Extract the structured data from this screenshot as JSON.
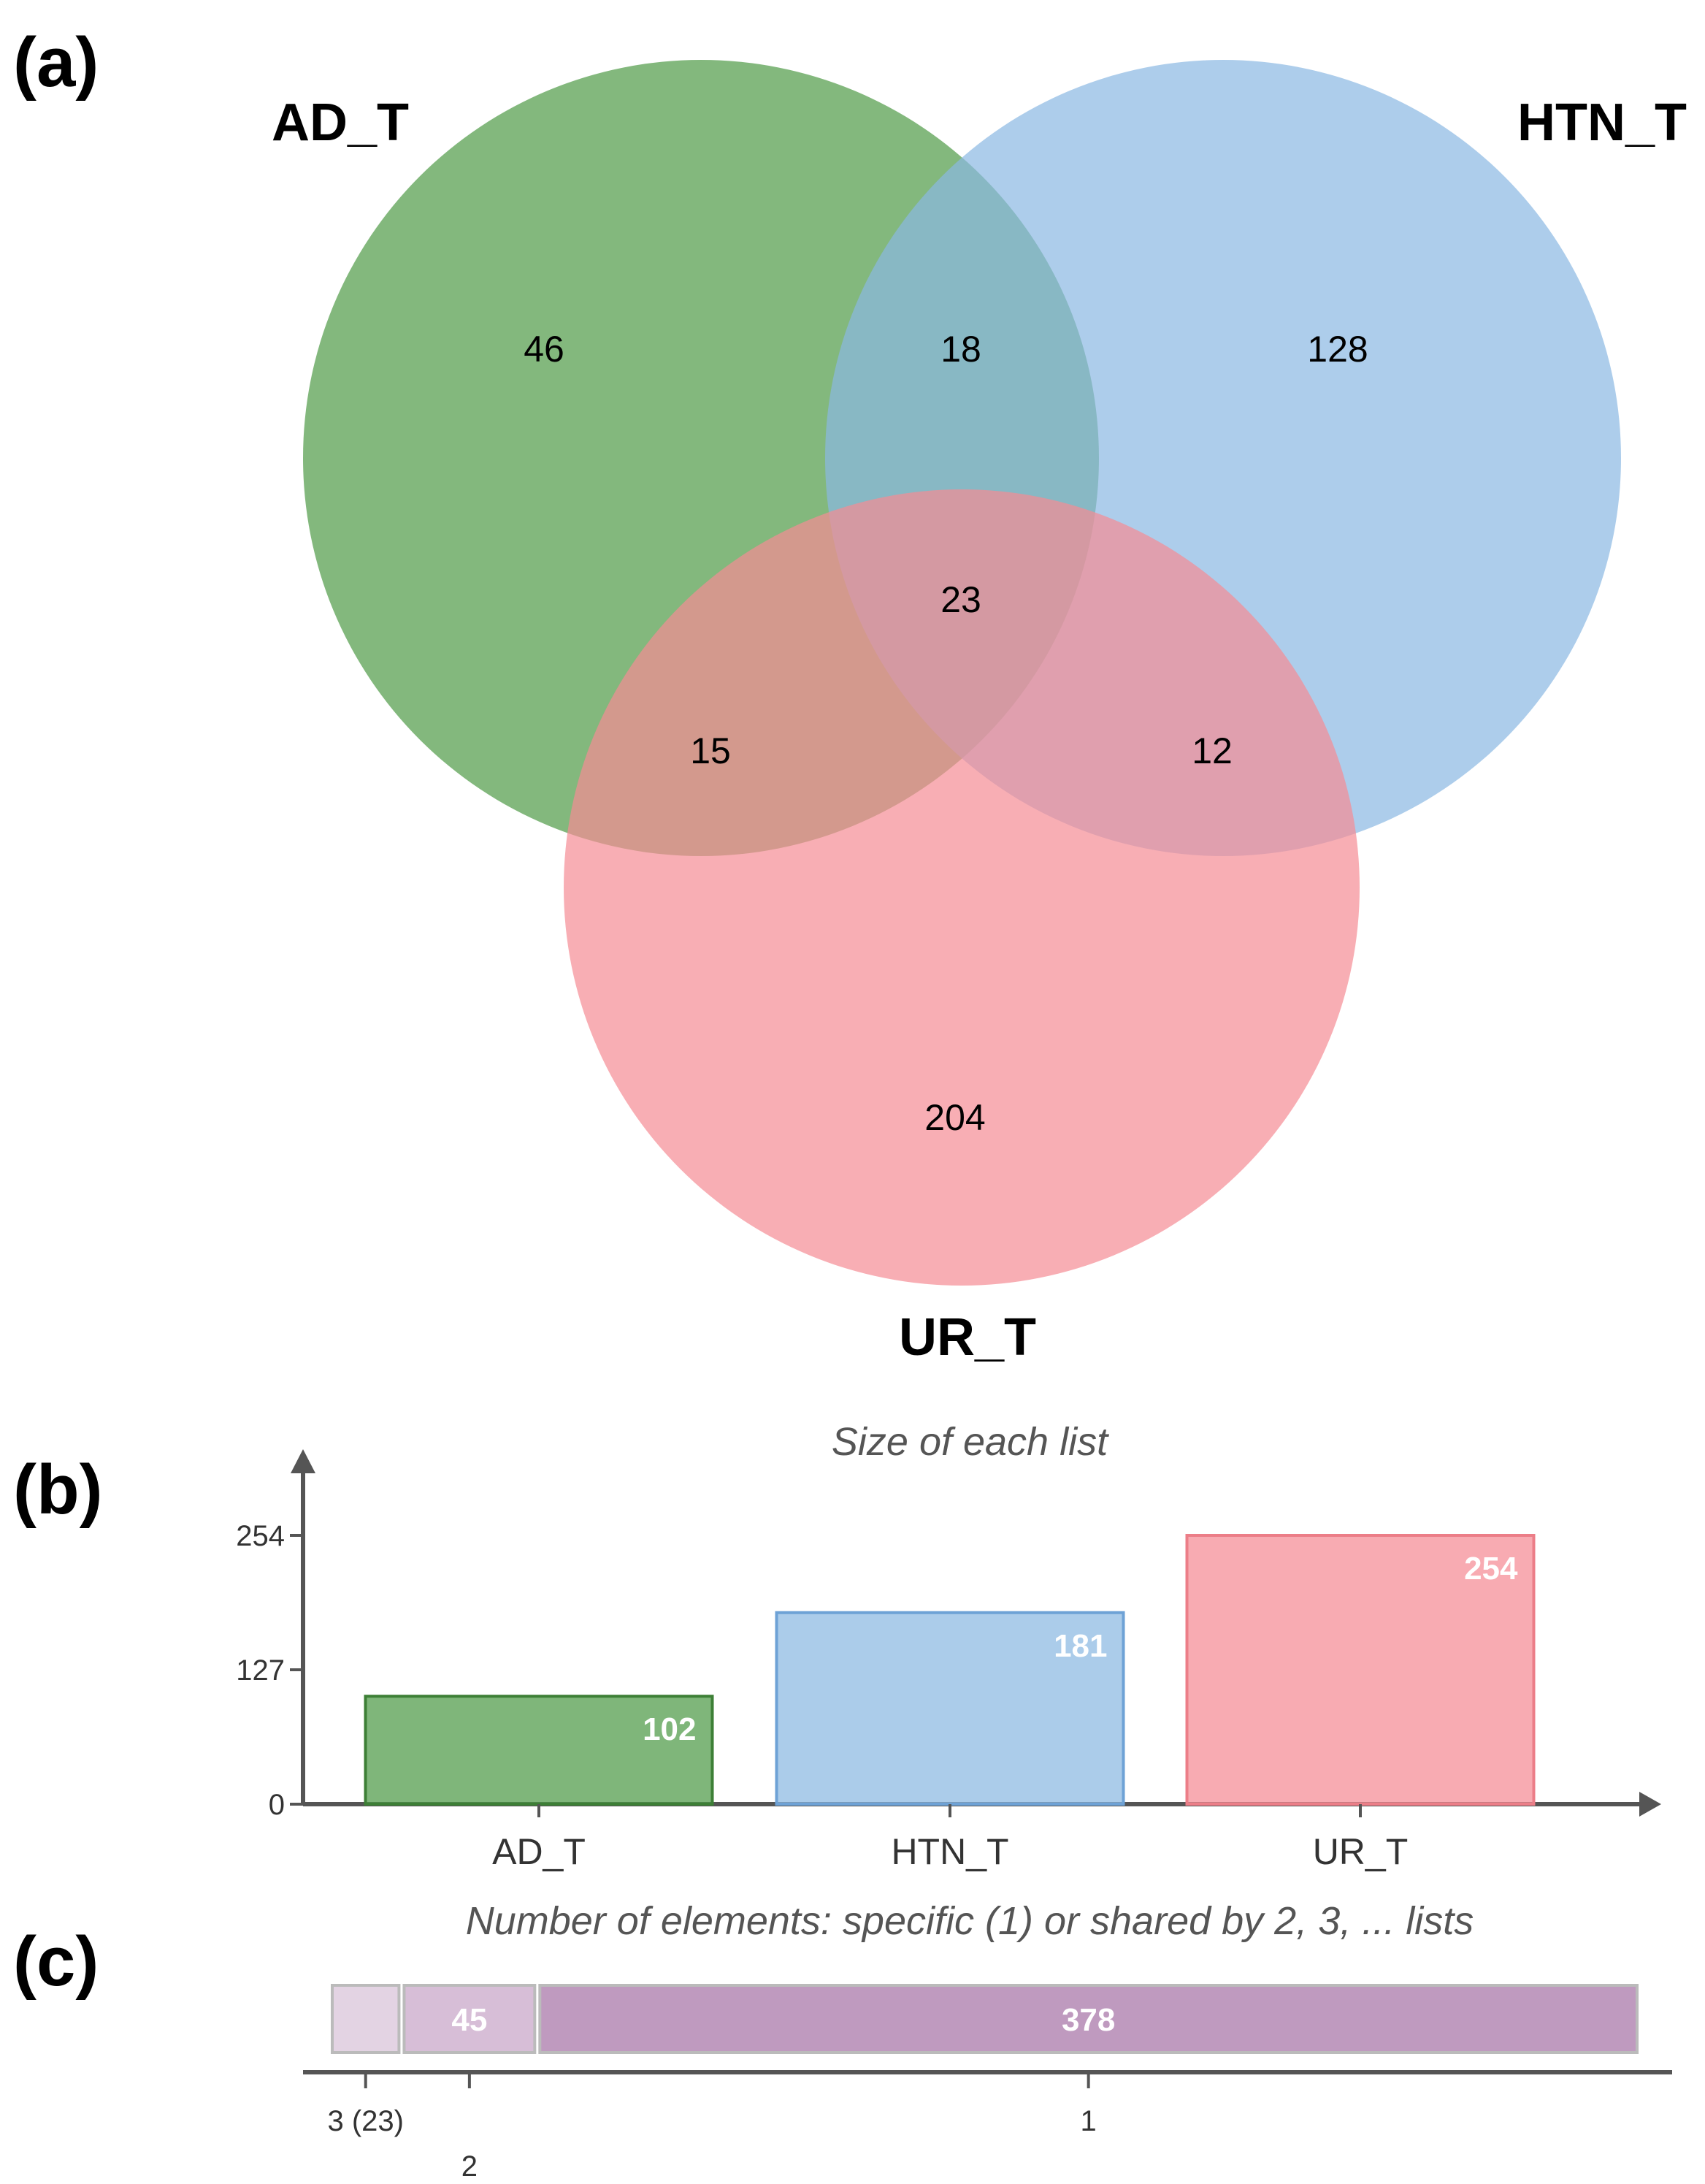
{
  "colors": {
    "ad_t": "#4e9a46",
    "htn_t": "#8ab8e2",
    "ur_t": "#f58b94",
    "ad_t_stroke": "#3d7f36",
    "htn_t_stroke": "#6ea2d6",
    "ur_t_stroke": "#ec7e88",
    "distribution_fills": [
      "#e3d3e3",
      "#d7bed7",
      "#bf9abf"
    ],
    "distribution_stroke": "#bbbbbb"
  },
  "chart_data": [
    {
      "panel": "(a)",
      "type": "venn",
      "sets": [
        "AD_T",
        "HTN_T",
        "UR_T"
      ],
      "regions": [
        {
          "sets": [
            "AD_T"
          ],
          "count": 46
        },
        {
          "sets": [
            "HTN_T"
          ],
          "count": 128
        },
        {
          "sets": [
            "UR_T"
          ],
          "count": 204
        },
        {
          "sets": [
            "AD_T",
            "HTN_T"
          ],
          "count": 18
        },
        {
          "sets": [
            "AD_T",
            "UR_T"
          ],
          "count": 15
        },
        {
          "sets": [
            "HTN_T",
            "UR_T"
          ],
          "count": 12
        },
        {
          "sets": [
            "AD_T",
            "HTN_T",
            "UR_T"
          ],
          "count": 23
        }
      ]
    },
    {
      "panel": "(b)",
      "type": "bar",
      "title": "Size of each list",
      "categories": [
        "AD_T",
        "HTN_T",
        "UR_T"
      ],
      "values": [
        102,
        181,
        254
      ],
      "yticks": [
        0,
        127,
        254
      ],
      "ylim": [
        0,
        254
      ],
      "grid": false
    },
    {
      "panel": "(c)",
      "type": "bar",
      "orientation": "horizontal-stacked",
      "title": "Number of elements: specific (1) or shared by 2, 3, ... lists",
      "segments": [
        {
          "label": "3 (23)",
          "value": 23,
          "value_label": ""
        },
        {
          "label": "2",
          "value": 45,
          "value_label": "45"
        },
        {
          "label": "1",
          "value": 378,
          "value_label": "378"
        }
      ]
    }
  ]
}
